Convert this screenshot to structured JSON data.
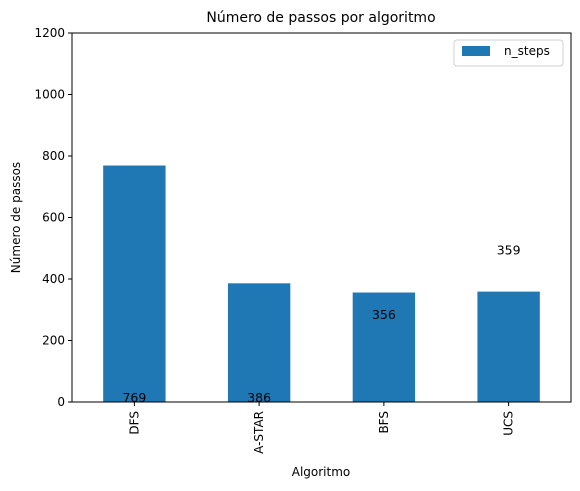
{
  "chart_data": {
    "type": "bar",
    "title": "Número de passos por algoritmo",
    "xlabel": "Algoritmo",
    "ylabel": "Número de passos",
    "categories": [
      "DFS",
      "A-STAR",
      "BFS",
      "UCS"
    ],
    "series": [
      {
        "name": "n_steps",
        "values": [
          769,
          386,
          356,
          359
        ],
        "color": "#1f77b4"
      }
    ],
    "ylim": [
      0,
      1200
    ],
    "yticks": [
      "0",
      "200",
      "400",
      "600",
      "800",
      "1000",
      "1200"
    ],
    "data_labels": [
      {
        "text": "769",
        "value_position": 15
      },
      {
        "text": "386",
        "value_position": 15
      },
      {
        "text": "356",
        "value_position": 285
      },
      {
        "text": "359",
        "value_position": 495
      }
    ],
    "grid": false,
    "legend": "top-right"
  }
}
